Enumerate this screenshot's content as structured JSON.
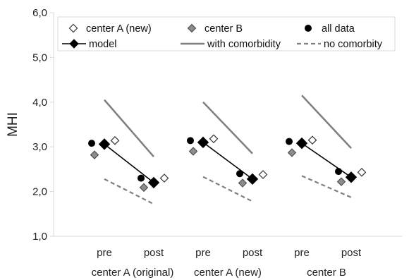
{
  "chart_data": {
    "type": "scatter",
    "ylabel": "MHI",
    "ylim": [
      1.0,
      6.0
    ],
    "yticks": [
      "1,0",
      "2,0",
      "3,0",
      "4,0",
      "5,0",
      "6,0"
    ],
    "ytick_values": [
      1,
      2,
      3,
      4,
      5,
      6
    ],
    "grid": false,
    "legend_placement": "top",
    "groups": [
      {
        "label": "center A (original)",
        "time_labels": [
          "pre",
          "post"
        ]
      },
      {
        "label": "center A (new)",
        "time_labels": [
          "pre",
          "post"
        ]
      },
      {
        "label": "center B",
        "time_labels": [
          "pre",
          "post"
        ]
      }
    ],
    "series": [
      {
        "name": "center A (new)",
        "marker": "diamond-open",
        "values": [
          [
            3.14,
            2.3
          ],
          [
            3.18,
            2.38
          ],
          [
            3.15,
            2.43
          ]
        ]
      },
      {
        "name": "center B",
        "marker": "diamond-gray",
        "values": [
          [
            2.82,
            2.09
          ],
          [
            2.9,
            2.19
          ],
          [
            2.87,
            2.22
          ]
        ]
      },
      {
        "name": "all data",
        "marker": "circle",
        "values": [
          [
            3.08,
            2.3
          ],
          [
            3.14,
            2.4
          ],
          [
            3.12,
            2.45
          ]
        ]
      },
      {
        "name": "model",
        "marker": "diamond-line",
        "values": [
          [
            3.06,
            2.2
          ],
          [
            3.1,
            2.28
          ],
          [
            3.08,
            2.32
          ]
        ]
      },
      {
        "name": "with comorbidity",
        "style": "solid-line",
        "values": [
          [
            4.05,
            2.78
          ],
          [
            4.0,
            2.85
          ],
          [
            4.15,
            2.97
          ]
        ]
      },
      {
        "name": "no comorbity",
        "style": "dashed-line",
        "values": [
          [
            2.28,
            1.72
          ],
          [
            2.33,
            1.78
          ],
          [
            2.35,
            1.87
          ]
        ]
      }
    ],
    "colors": {
      "model": "#000000",
      "with_comorbidity": "#7f7f7f",
      "no_comorbity": "#7f7f7f",
      "center_b_fill": "#8c8c8c",
      "all_data": "#000000"
    }
  }
}
